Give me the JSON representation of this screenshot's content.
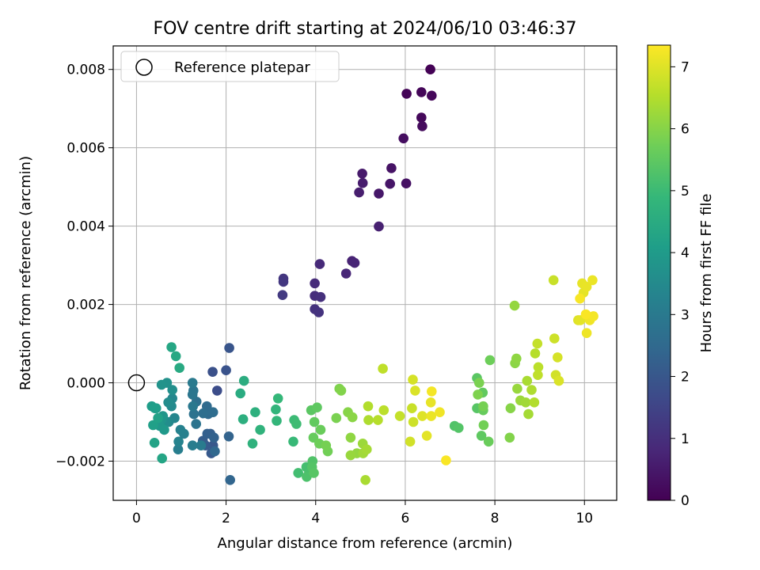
{
  "chart_data": {
    "type": "scatter",
    "title": "FOV centre drift starting at 2024/06/10 03:46:37",
    "xlabel": "Angular distance from reference (arcmin)",
    "ylabel": "Rotation from reference (arcmin)",
    "xlim": [
      -0.52,
      10.72
    ],
    "ylim": [
      -0.003,
      0.0086
    ],
    "x_ticks": [
      0,
      2,
      4,
      6,
      8,
      10
    ],
    "x_tick_labels": [
      "0",
      "2",
      "4",
      "6",
      "8",
      "10"
    ],
    "y_ticks": [
      -0.002,
      0.0,
      0.002,
      0.004,
      0.006,
      0.008
    ],
    "y_tick_labels": [
      "−0.002",
      "0.000",
      "0.002",
      "0.004",
      "0.006",
      "0.008"
    ],
    "grid": true,
    "legend": {
      "position": "upper-left",
      "label": "Reference platepar",
      "marker": "hollow-circle"
    },
    "reference_point": {
      "x": 0,
      "y": 0
    },
    "colorbar": {
      "label": "Hours from first FF file",
      "range": [
        0,
        7.35
      ],
      "ticks": [
        0,
        1,
        2,
        3,
        4,
        5,
        6,
        7
      ],
      "tick_labels": [
        "0",
        "1",
        "2",
        "3",
        "4",
        "5",
        "6",
        "7"
      ],
      "colormap": "viridis",
      "stops": [
        "#440154",
        "#482878",
        "#3e4989",
        "#31688e",
        "#26828e",
        "#1f9e89",
        "#35b779",
        "#6ece58",
        "#b5de2b",
        "#fde725"
      ]
    },
    "points": [
      [
        6.56,
        0.008,
        0.02
      ],
      [
        6.03,
        0.00738,
        0.06
      ],
      [
        6.36,
        0.00742,
        0.1
      ],
      [
        6.59,
        0.00733,
        0.13
      ],
      [
        6.36,
        0.00677,
        0.17
      ],
      [
        6.38,
        0.00655,
        0.21
      ],
      [
        5.96,
        0.00624,
        0.27
      ],
      [
        6.02,
        0.00509,
        0.33
      ],
      [
        5.69,
        0.00548,
        0.38
      ],
      [
        5.66,
        0.00508,
        0.42
      ],
      [
        5.41,
        0.00483,
        0.47
      ],
      [
        5.04,
        0.00534,
        0.52
      ],
      [
        5.05,
        0.0051,
        0.56
      ],
      [
        4.97,
        0.00486,
        0.6
      ],
      [
        5.41,
        0.00399,
        0.66
      ],
      [
        4.81,
        0.00311,
        0.72
      ],
      [
        4.87,
        0.00306,
        0.76
      ],
      [
        4.68,
        0.00279,
        0.8
      ],
      [
        4.09,
        0.00303,
        0.86
      ],
      [
        3.98,
        0.00254,
        0.92
      ],
      [
        3.98,
        0.00222,
        0.97
      ],
      [
        4.11,
        0.00219,
        1.01
      ],
      [
        3.98,
        0.00188,
        1.06
      ],
      [
        4.07,
        0.0018,
        1.1
      ],
      [
        3.28,
        0.00266,
        1.16
      ],
      [
        3.28,
        0.00258,
        1.2
      ],
      [
        3.26,
        0.00224,
        1.26
      ],
      [
        1.8,
        -0.0002,
        1.75
      ],
      [
        1.7,
        0.00028,
        1.85
      ],
      [
        2.0,
        0.00032,
        1.9
      ],
      [
        2.07,
        0.00089,
        1.95
      ],
      [
        1.71,
        -0.0016,
        2.0
      ],
      [
        1.67,
        -0.0018,
        2.05
      ],
      [
        1.54,
        -0.0016,
        2.1
      ],
      [
        1.48,
        -0.00148,
        2.15
      ],
      [
        1.65,
        -0.0013,
        2.2
      ],
      [
        1.58,
        -0.0013,
        2.25
      ],
      [
        1.73,
        -0.0014,
        2.3
      ],
      [
        2.06,
        -0.00137,
        2.35
      ],
      [
        2.09,
        -0.00248,
        2.4
      ],
      [
        1.75,
        -0.00175,
        2.45
      ],
      [
        1.6,
        -0.0008,
        2.5
      ],
      [
        1.57,
        -0.0006,
        2.55
      ],
      [
        1.71,
        -0.00075,
        2.6
      ],
      [
        1.49,
        -0.00078,
        2.65
      ],
      [
        1.34,
        -0.00048,
        2.7
      ],
      [
        1.28,
        -0.0008,
        2.75
      ],
      [
        1.33,
        -0.00105,
        2.8
      ],
      [
        1.27,
        -0.0002,
        2.85
      ],
      [
        1.25,
        -0.0003,
        2.9
      ],
      [
        1.26,
        -0.0006,
        2.95
      ],
      [
        1.25,
        0.0,
        3.0
      ],
      [
        1.44,
        -0.0016,
        3.05
      ],
      [
        1.25,
        -0.0016,
        3.1
      ],
      [
        0.93,
        -0.0017,
        3.15
      ],
      [
        1.06,
        -0.0013,
        3.2
      ],
      [
        0.98,
        -0.0012,
        3.25
      ],
      [
        0.94,
        -0.0015,
        3.3
      ],
      [
        0.85,
        -0.0009,
        3.35
      ],
      [
        0.8,
        -0.0004,
        3.4
      ],
      [
        0.72,
        -0.001,
        3.45
      ],
      [
        0.78,
        -0.0006,
        3.5
      ],
      [
        0.71,
        -0.0005,
        3.55
      ],
      [
        0.66,
        -0.001,
        3.6
      ],
      [
        0.8,
        -0.00018,
        3.65
      ],
      [
        0.68,
        0.0,
        3.7
      ],
      [
        0.56,
        -5e-05,
        3.75
      ],
      [
        0.56,
        -0.00095,
        3.8
      ],
      [
        0.59,
        -0.00085,
        3.85
      ],
      [
        0.52,
        -0.0011,
        3.9
      ],
      [
        0.62,
        -0.0012,
        3.95
      ],
      [
        0.44,
        -0.00065,
        4.0
      ],
      [
        0.34,
        -0.0006,
        4.05
      ],
      [
        0.41,
        -0.00065,
        4.1
      ],
      [
        0.37,
        -0.00108,
        4.15
      ],
      [
        0.48,
        -0.0009,
        4.2
      ],
      [
        0.4,
        -0.00153,
        4.25
      ],
      [
        0.57,
        -0.00193,
        4.3
      ],
      [
        0.78,
        0.00091,
        4.35
      ],
      [
        0.88,
        0.00068,
        4.4
      ],
      [
        0.96,
        0.00038,
        4.45
      ],
      [
        2.32,
        -0.00027,
        4.5
      ],
      [
        2.4,
        5e-05,
        4.55
      ],
      [
        2.38,
        -0.00093,
        4.6
      ],
      [
        2.65,
        -0.00075,
        4.65
      ],
      [
        2.59,
        -0.00155,
        4.7
      ],
      [
        2.76,
        -0.0012,
        4.75
      ],
      [
        3.11,
        -0.00068,
        4.8
      ],
      [
        3.13,
        -0.00097,
        4.85
      ],
      [
        3.16,
        -0.0004,
        4.9
      ],
      [
        3.5,
        -0.0015,
        4.95
      ],
      [
        3.52,
        -0.00095,
        5.0
      ],
      [
        3.57,
        -0.00105,
        5.05
      ],
      [
        3.61,
        -0.0023,
        5.1
      ],
      [
        3.79,
        -0.00215,
        5.15
      ],
      [
        3.85,
        -0.0023,
        5.2
      ],
      [
        3.8,
        -0.0024,
        5.25
      ],
      [
        3.93,
        -0.002,
        5.3
      ],
      [
        3.92,
        -0.00215,
        5.35
      ],
      [
        3.96,
        -0.0023,
        5.4
      ],
      [
        3.9,
        -0.0007,
        5.45
      ],
      [
        4.03,
        -0.00063,
        5.5
      ],
      [
        3.97,
        -0.001,
        5.55
      ],
      [
        3.95,
        -0.0014,
        5.6
      ],
      [
        4.11,
        -0.0012,
        5.65
      ],
      [
        4.08,
        -0.00155,
        5.7
      ],
      [
        4.27,
        -0.00175,
        5.75
      ],
      [
        4.23,
        -0.0016,
        5.8
      ],
      [
        4.46,
        -0.0009,
        5.85
      ],
      [
        4.53,
        -0.00015,
        5.9
      ],
      [
        4.57,
        -0.0002,
        5.95
      ],
      [
        4.72,
        -0.00075,
        6.0
      ],
      [
        4.82,
        -0.00088,
        6.05
      ],
      [
        4.78,
        -0.0014,
        6.1
      ],
      [
        4.92,
        -0.0018,
        6.15
      ],
      [
        4.78,
        -0.00185,
        6.2
      ],
      [
        5.05,
        -0.00155,
        6.25
      ],
      [
        5.06,
        -0.0018,
        6.3
      ],
      [
        5.14,
        -0.0017,
        6.35
      ],
      [
        5.11,
        -0.00248,
        6.4
      ],
      [
        5.18,
        -0.00095,
        6.45
      ],
      [
        5.17,
        -0.0006,
        6.5
      ],
      [
        5.39,
        -0.00095,
        6.55
      ],
      [
        5.52,
        -0.0007,
        6.6
      ],
      [
        5.5,
        0.00036,
        6.65
      ],
      [
        5.88,
        -0.00085,
        6.7
      ],
      [
        6.15,
        -0.00065,
        6.75
      ],
      [
        6.18,
        -0.001,
        6.8
      ],
      [
        6.11,
        -0.0015,
        6.85
      ],
      [
        6.17,
        8e-05,
        6.9
      ],
      [
        6.22,
        -0.0002,
        6.95
      ],
      [
        6.38,
        -0.00085,
        7.0
      ],
      [
        6.48,
        -0.00135,
        7.05
      ],
      [
        6.57,
        -0.0005,
        7.1
      ],
      [
        6.58,
        -0.00085,
        7.15
      ],
      [
        6.77,
        -0.00075,
        7.2
      ],
      [
        6.59,
        -0.00022,
        7.25
      ],
      [
        6.91,
        -0.00198,
        7.3
      ]
    ],
    "points_b": [
      [
        7.1,
        -0.0011,
        5.3
      ],
      [
        7.19,
        -0.00115,
        5.35
      ],
      [
        7.6,
        -0.00065,
        5.4
      ],
      [
        7.6,
        0.00012,
        5.45
      ],
      [
        7.7,
        -0.00135,
        5.5
      ],
      [
        7.73,
        -0.00025,
        5.55
      ],
      [
        7.74,
        -0.0007,
        5.6
      ],
      [
        7.86,
        -0.0015,
        5.65
      ],
      [
        7.89,
        0.00058,
        5.7
      ],
      [
        7.75,
        -0.00108,
        5.75
      ],
      [
        7.74,
        -0.0006,
        5.8
      ],
      [
        7.65,
        0.0,
        5.85
      ],
      [
        7.62,
        -0.0003,
        5.9
      ],
      [
        8.33,
        -0.0014,
        5.95
      ],
      [
        8.35,
        -0.00065,
        6.0
      ],
      [
        8.45,
        0.0005,
        6.05
      ],
      [
        8.48,
        0.00062,
        6.1
      ],
      [
        8.44,
        0.00197,
        6.15
      ],
      [
        8.5,
        -0.00015,
        6.2
      ],
      [
        8.57,
        -0.00045,
        6.25
      ],
      [
        8.69,
        -0.0005,
        6.3
      ],
      [
        8.75,
        -0.0008,
        6.35
      ],
      [
        8.72,
        5e-05,
        6.4
      ],
      [
        8.82,
        -0.00018,
        6.45
      ],
      [
        8.88,
        -0.0005,
        6.5
      ],
      [
        8.9,
        0.00075,
        6.55
      ],
      [
        8.97,
        0.0004,
        6.6
      ],
      [
        8.96,
        0.0002,
        6.65
      ],
      [
        8.95,
        0.001,
        6.7
      ],
      [
        9.31,
        0.00262,
        6.75
      ],
      [
        9.33,
        0.00113,
        6.8
      ],
      [
        9.36,
        0.0002,
        6.85
      ],
      [
        9.4,
        0.00065,
        6.9
      ],
      [
        9.43,
        5e-05,
        6.95
      ],
      [
        9.86,
        0.0016,
        7.0
      ],
      [
        9.91,
        0.0016,
        7.05
      ],
      [
        9.98,
        0.0023,
        7.08
      ],
      [
        9.95,
        0.00254,
        7.1
      ],
      [
        10.05,
        0.00245,
        7.12
      ],
      [
        10.18,
        0.00262,
        7.15
      ],
      [
        10.05,
        0.00127,
        7.18
      ],
      [
        10.12,
        0.0016,
        7.2
      ],
      [
        10.2,
        0.0017,
        7.25
      ],
      [
        9.9,
        0.00215,
        7.28
      ],
      [
        10.03,
        0.00175,
        7.3
      ]
    ]
  }
}
